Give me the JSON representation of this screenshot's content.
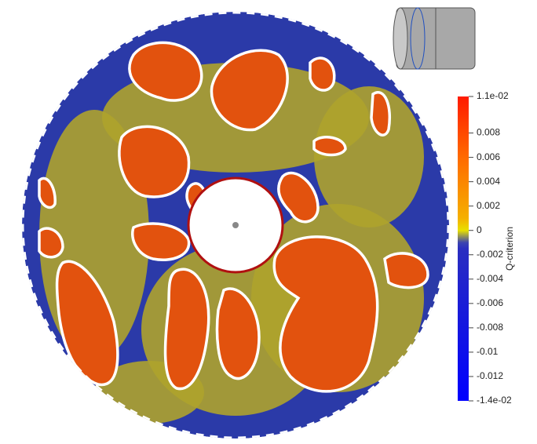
{
  "chart_data": {
    "type": "contour",
    "colorbar": {
      "label": "Q-criterion",
      "lim": [
        -0.014,
        0.011
      ],
      "ticks": [
        {
          "value": 0.011,
          "label": "1.1e-02"
        },
        0.008,
        0.006,
        0.004,
        0.002,
        0,
        -0.002,
        -0.004,
        -0.006,
        -0.008,
        -0.01,
        -0.012,
        {
          "value": -0.014,
          "label": "-1.4e-02"
        }
      ]
    }
  }
}
